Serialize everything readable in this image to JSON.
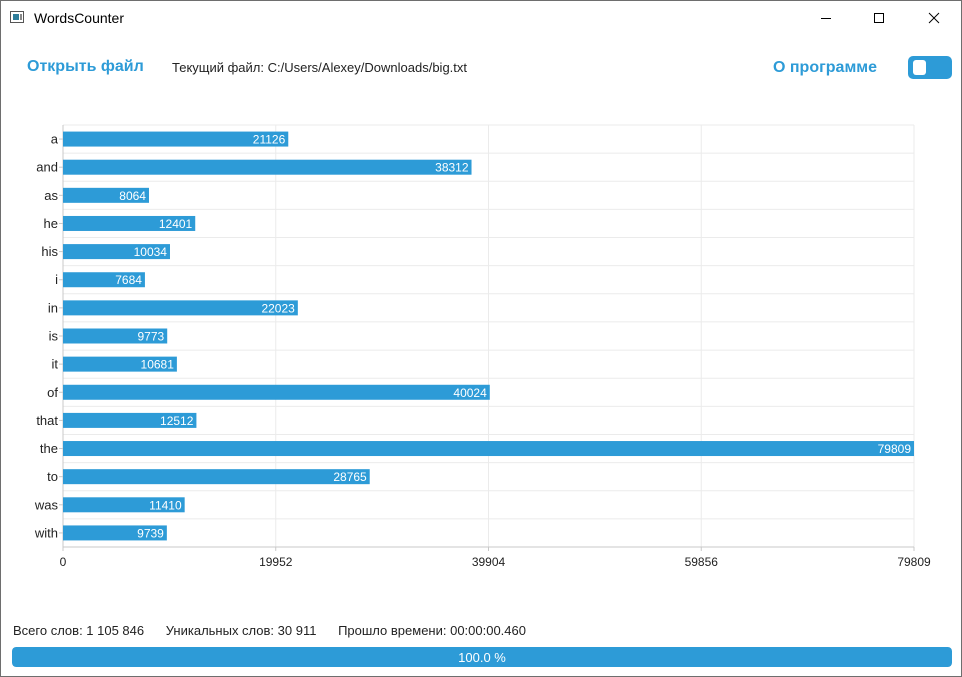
{
  "window": {
    "title": "WordsCounter"
  },
  "toolbar": {
    "open_file_label": "Открыть файл",
    "current_file_label": "Текущий файл: C:/Users/Alexey/Downloads/big.txt",
    "about_label": "О программе",
    "toggle_on": true
  },
  "colors": {
    "accent": "#2d9bd7",
    "grid": "#ebebeb"
  },
  "chart_data": {
    "type": "bar",
    "orientation": "horizontal",
    "categories": [
      "a",
      "and",
      "as",
      "he",
      "his",
      "i",
      "in",
      "is",
      "it",
      "of",
      "that",
      "the",
      "to",
      "was",
      "with"
    ],
    "values": [
      21126,
      38312,
      8064,
      12401,
      10034,
      7684,
      22023,
      9773,
      10681,
      40024,
      12512,
      79809,
      28765,
      11410,
      9739
    ],
    "xlim": [
      0,
      79809
    ],
    "xticks": [
      "0",
      "19952",
      "39904",
      "59856",
      "79809"
    ],
    "title": "",
    "xlabel": "",
    "ylabel": "",
    "grid": true,
    "legend": "none"
  },
  "stats": {
    "total_words": "Всего слов: 1 105 846",
    "unique_words": "Уникальных слов: 30 911",
    "elapsed": "Прошло времени: 00:00:00.460"
  },
  "progress": {
    "value": 1.0,
    "text": "100.0 %"
  }
}
